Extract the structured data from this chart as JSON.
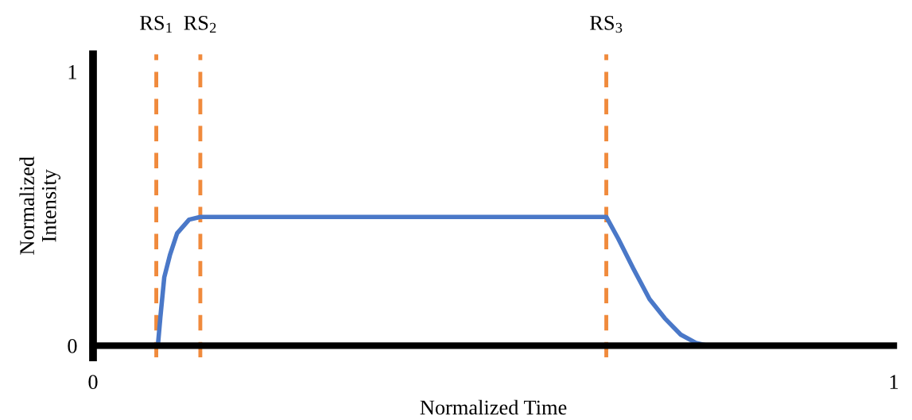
{
  "chart_data": {
    "type": "line",
    "xlabel": "Normalized Time",
    "ylabel": "Normalized\nIntensity",
    "x": [
      0,
      0.081,
      0.084,
      0.089,
      0.096,
      0.105,
      0.12,
      0.134,
      0.641,
      0.656,
      0.675,
      0.695,
      0.714,
      0.734,
      0.753,
      0.768,
      1.0
    ],
    "series": [
      {
        "color": "#4a78c8",
        "values": [
          0,
          0,
          0.1,
          0.25,
          0.33,
          0.41,
          0.46,
          0.47,
          0.47,
          0.39,
          0.28,
          0.17,
          0.1,
          0.04,
          0.01,
          0,
          0
        ]
      }
    ],
    "xlim": [
      0,
      1
    ],
    "ylim": [
      -0.043,
      1.064
    ],
    "xticks": [
      0,
      1
    ],
    "yticks": [
      0,
      1
    ],
    "legend": false,
    "marker": "none",
    "line_style": "solid",
    "ref_lines": [
      {
        "axis": "x",
        "value": 0.079,
        "label": "RS$_{1}$",
        "color": "#f08a3c",
        "line_style": "dashed"
      },
      {
        "axis": "x",
        "value": 0.134,
        "label": "RS$_{2}$",
        "color": "#f08a3c",
        "line_style": "dashed"
      },
      {
        "axis": "x",
        "value": 0.641,
        "label": "RS$_{3}$",
        "color": "#f08a3c",
        "line_style": "dashed"
      }
    ]
  }
}
